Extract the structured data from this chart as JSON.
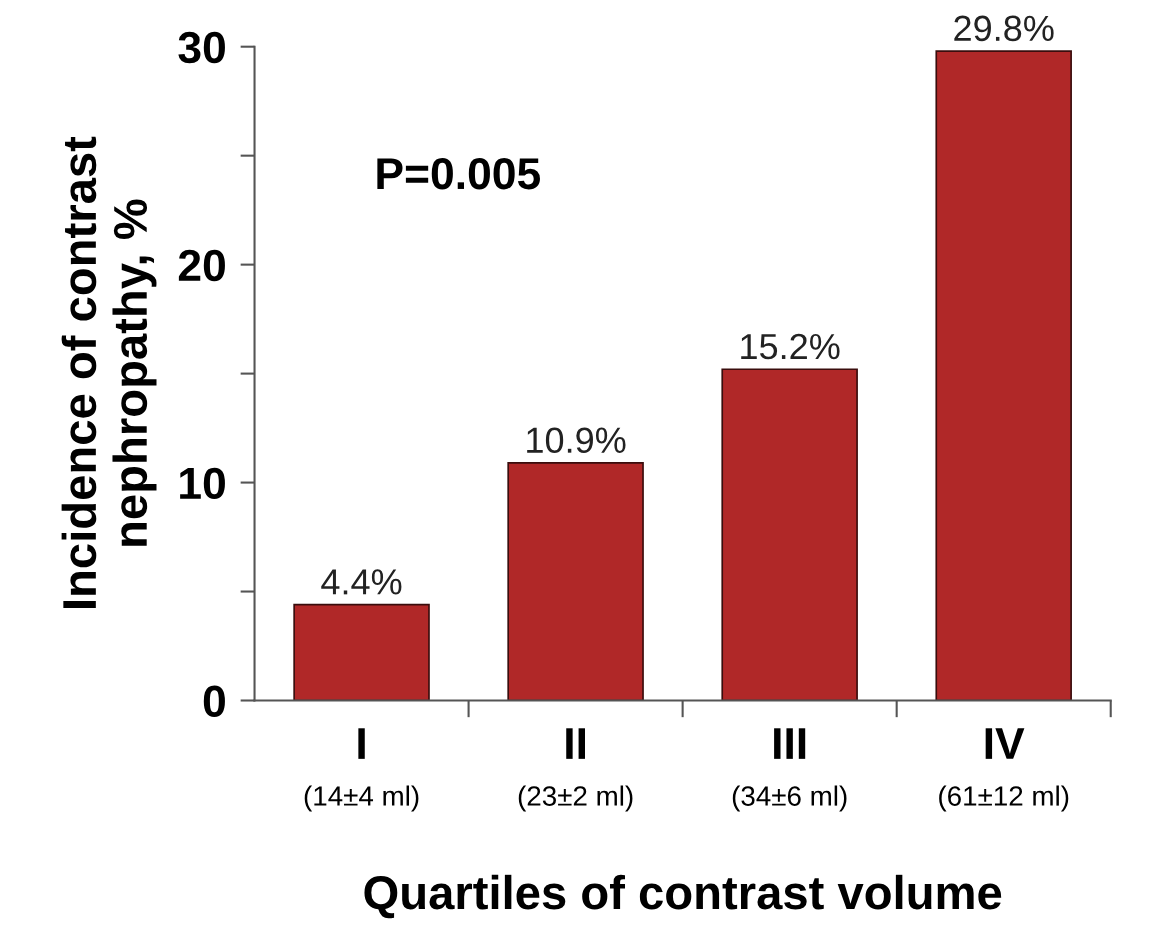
{
  "chart_data": {
    "type": "bar",
    "categories": [
      "I\n(14±4 ml)",
      "II\n(23±2 ml)",
      "III\n(34±6 ml)",
      "IV\n(61±12 ml)"
    ],
    "values": [
      4.4,
      10.9,
      15.2,
      29.8
    ],
    "color": "#b02828",
    "value_labels": [
      "4.4%",
      "10.9%",
      "15.2%",
      "29.8%"
    ],
    "xlabel": "Quartiles of contrast volume",
    "ylabel": "Incidence of contrast\nnephropathy, %",
    "annotations": [
      "P=0.005"
    ],
    "ylim": [
      0,
      30
    ],
    "yticks": [
      0,
      {
        "value": 5,
        "label": null
      },
      10,
      {
        "value": 15,
        "label": null
      },
      20,
      {
        "value": 25,
        "label": null
      },
      30
    ],
    "grid": false
  }
}
